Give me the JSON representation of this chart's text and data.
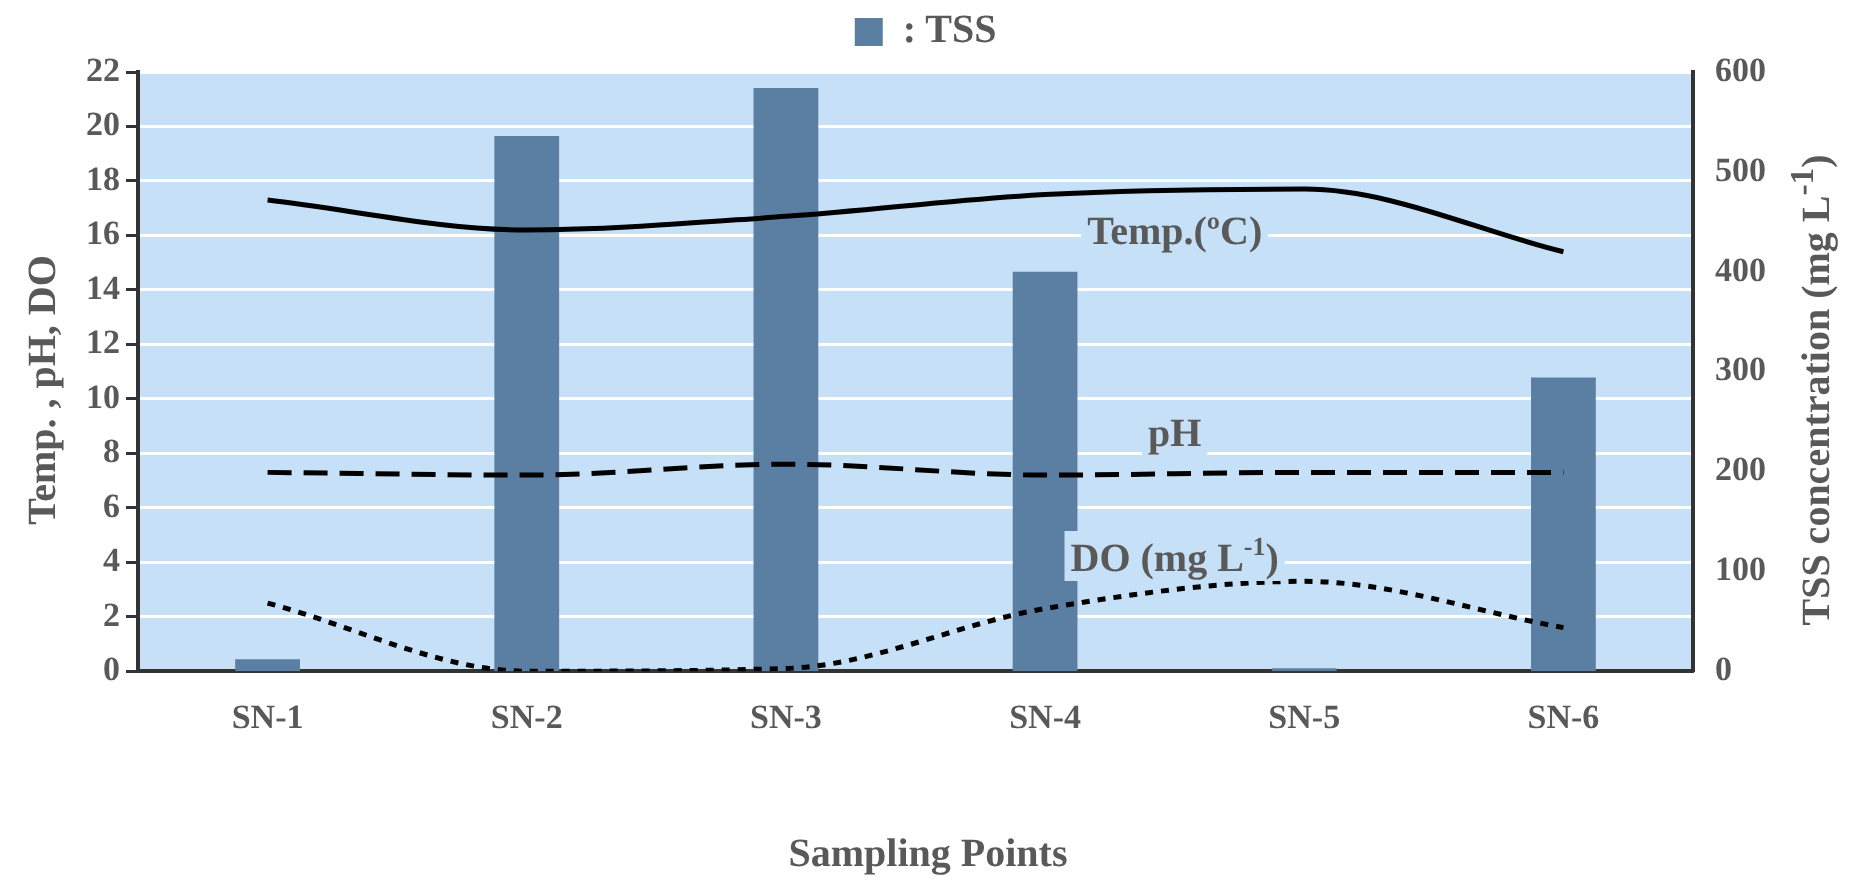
{
  "chart_data": {
    "type": "bar",
    "xlabel": "Sampling Points",
    "ylabel": "Temp. , pH,  DO",
    "y2label": "TSS concentration (mg L$^{-1}$)",
    "categories": [
      "SN-1",
      "SN-2",
      "SN-3",
      "SN-4",
      "SN-5",
      "SN-6"
    ],
    "series": [
      {
        "name": ": TSS",
        "axis": "y2",
        "color": "#5b7fa3",
        "values": [
          12,
          536,
          584,
          400,
          3,
          294
        ]
      },
      {
        "name": "Temp.(ºC)",
        "type": "line",
        "line_style": "solid",
        "color": "#000000",
        "values": [
          17.3,
          16.2,
          16.7,
          17.5,
          17.7,
          15.4
        ]
      },
      {
        "name": "pH",
        "type": "line",
        "line_style": "dashed",
        "color": "#000000",
        "values": [
          7.3,
          7.2,
          7.6,
          7.2,
          7.3,
          7.3
        ]
      },
      {
        "name": "DO (mg L$^{-1}$)",
        "type": "line",
        "line_style": "dotted",
        "color": "#000000",
        "values": [
          2.5,
          0,
          0.1,
          2.3,
          3.3,
          1.6
        ]
      }
    ],
    "ylim": [
      0,
      22
    ],
    "yticks": [
      0,
      2,
      4,
      6,
      8,
      10,
      12,
      14,
      16,
      18,
      20,
      22
    ],
    "y2lim": [
      0,
      600
    ],
    "y2ticks": [
      0,
      100,
      200,
      300,
      400,
      500,
      600
    ],
    "grid": "y",
    "legend": "top",
    "marker": "none"
  }
}
